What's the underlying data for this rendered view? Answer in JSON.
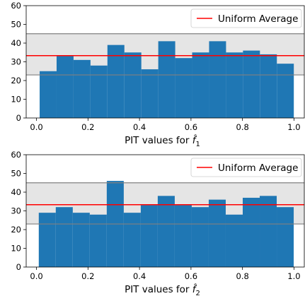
{
  "chart_data": [
    {
      "type": "bar",
      "xlabel": "PIT values for f̂",
      "xlabel_sub": "1",
      "ylabel": "",
      "xlim": [
        -0.04,
        1.04
      ],
      "ylim": [
        0,
        60
      ],
      "xticks": [
        "0.0",
        "0.2",
        "0.4",
        "0.6",
        "0.8",
        "1.0"
      ],
      "yticks": [
        "0",
        "10",
        "20",
        "30",
        "40",
        "50",
        "60"
      ],
      "bin_edges": [
        0.0123,
        0.0781,
        0.1439,
        0.2097,
        0.2755,
        0.3413,
        0.4071,
        0.4729,
        0.5387,
        0.6045,
        0.6703,
        0.7361,
        0.8019,
        0.8677,
        0.9335,
        0.9993
      ],
      "values": [
        25,
        33,
        31,
        28,
        39,
        35,
        26,
        41,
        32,
        35,
        41,
        35,
        36,
        34,
        29
      ],
      "bar_color": "#1f77b4",
      "uniform_average": 33.3,
      "band": [
        23,
        45
      ],
      "band_color": "#e5e5e5",
      "line_color": "#ff0000",
      "legend": {
        "label": "Uniform Average",
        "location": "upper right"
      },
      "grid": false
    },
    {
      "type": "bar",
      "xlabel": "PIT values for f̂",
      "xlabel_sub": "2",
      "ylabel": "",
      "xlim": [
        -0.04,
        1.04
      ],
      "ylim": [
        0,
        60
      ],
      "xticks": [
        "0.0",
        "0.2",
        "0.4",
        "0.6",
        "0.8",
        "1.0"
      ],
      "yticks": [
        "0",
        "10",
        "20",
        "30",
        "40",
        "50",
        "60"
      ],
      "bin_edges": [
        0.0089,
        0.0749,
        0.1409,
        0.2069,
        0.2729,
        0.3389,
        0.4049,
        0.4709,
        0.5369,
        0.6029,
        0.6689,
        0.7349,
        0.8009,
        0.8669,
        0.9329,
        0.9989
      ],
      "values": [
        29,
        32,
        29,
        28,
        46,
        29,
        33,
        38,
        33,
        32,
        36,
        28,
        37,
        38,
        32
      ],
      "bar_color": "#1f77b4",
      "uniform_average": 33.3,
      "band": [
        23,
        45
      ],
      "band_color": "#e5e5e5",
      "line_color": "#ff0000",
      "legend": {
        "label": "Uniform Average",
        "location": "upper right"
      },
      "grid": false
    }
  ]
}
